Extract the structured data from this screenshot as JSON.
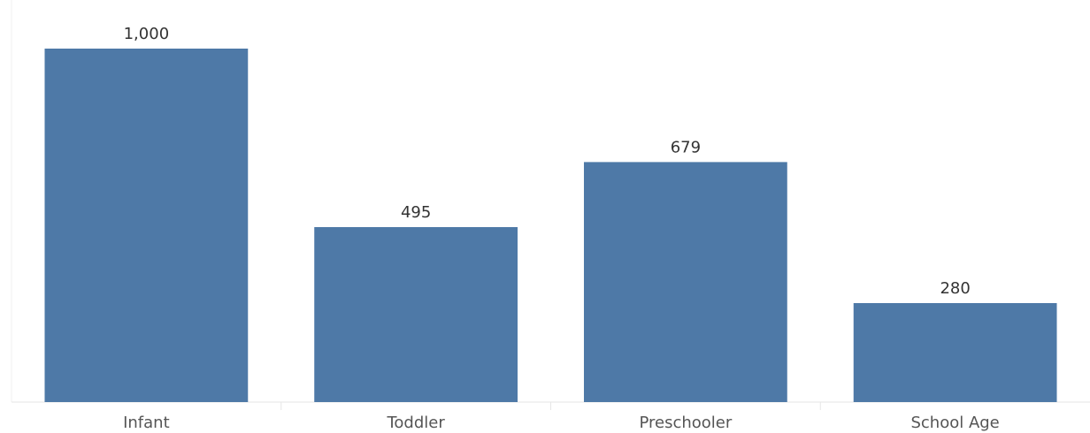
{
  "chart_data": {
    "type": "bar",
    "categories": [
      "Infant",
      "Toddler",
      "Preschooler",
      "School Age"
    ],
    "values": [
      1000,
      495,
      679,
      280
    ],
    "value_labels": [
      "1,000",
      "495",
      "679",
      "280"
    ],
    "color": "#4e79a7"
  }
}
